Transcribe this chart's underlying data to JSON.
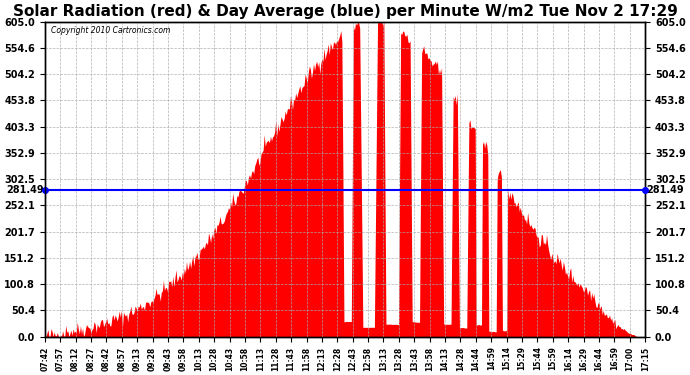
{
  "title": "Solar Radiation (red) & Day Average (blue) per Minute W/m2 Tue Nov 2 17:29",
  "copyright_text": "Copyright 2010 Cartronics.com",
  "y_max": 605.0,
  "y_min": 0.0,
  "y_ticks": [
    0.0,
    50.4,
    100.8,
    151.2,
    201.7,
    252.1,
    302.5,
    352.9,
    403.3,
    453.8,
    504.2,
    554.6,
    605.0
  ],
  "avg_value": 281.49,
  "avg_label": "281.49",
  "fill_color": "red",
  "avg_line_color": "blue",
  "background_color": "#ffffff",
  "grid_color": "#aaaaaa",
  "title_fontsize": 11,
  "x_labels": [
    "07:42",
    "07:57",
    "08:12",
    "08:27",
    "08:42",
    "08:57",
    "09:13",
    "09:28",
    "09:43",
    "09:58",
    "10:13",
    "10:28",
    "10:43",
    "10:58",
    "11:13",
    "11:28",
    "11:43",
    "11:58",
    "12:13",
    "12:28",
    "12:43",
    "12:58",
    "13:13",
    "13:28",
    "13:43",
    "13:58",
    "14:13",
    "14:28",
    "14:44",
    "14:59",
    "15:14",
    "15:29",
    "15:44",
    "15:59",
    "16:14",
    "16:29",
    "16:44",
    "16:59",
    "17:00",
    "17:15"
  ]
}
